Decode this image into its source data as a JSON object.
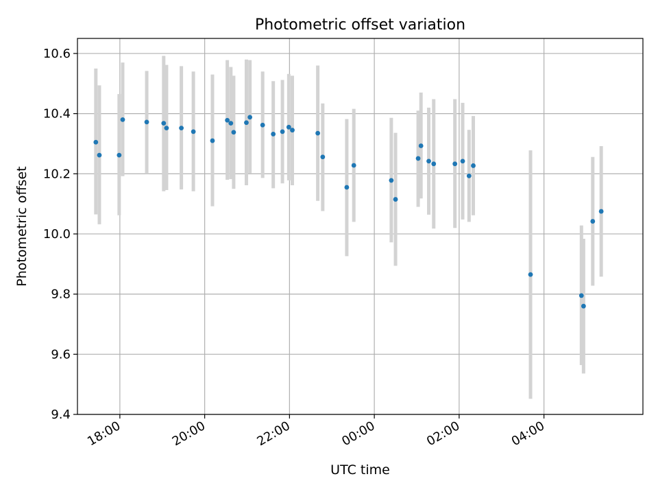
{
  "chart_data": {
    "type": "scatter",
    "title": "Photometric offset variation",
    "xlabel": "UTC time",
    "ylabel": "Photometric offset",
    "x_axis_kind": "time",
    "xlim": [
      "17:00",
      "06:20"
    ],
    "ylim": [
      9.4,
      10.65
    ],
    "grid": true,
    "x_ticks": [
      "18:00",
      "20:00",
      "22:00",
      "00:00",
      "02:00",
      "04:00"
    ],
    "y_ticks": [
      "9.4",
      "9.6",
      "9.8",
      "10.0",
      "10.2",
      "10.4",
      "10.6"
    ],
    "colors": {
      "point": "#1f77b4",
      "errorbar": "#d3d3d3",
      "grid": "#b0b0b0"
    },
    "points": [
      {
        "x": "17:26",
        "y": 10.305,
        "lo": 10.065,
        "hi": 10.55
      },
      {
        "x": "17:31",
        "y": 10.262,
        "lo": 10.032,
        "hi": 10.494
      },
      {
        "x": "17:59",
        "y": 10.262,
        "lo": 10.062,
        "hi": 10.465
      },
      {
        "x": "18:04",
        "y": 10.38,
        "lo": 10.192,
        "hi": 10.57
      },
      {
        "x": "18:38",
        "y": 10.372,
        "lo": 10.2,
        "hi": 10.542
      },
      {
        "x": "19:02",
        "y": 10.368,
        "lo": 10.142,
        "hi": 10.592
      },
      {
        "x": "19:06",
        "y": 10.352,
        "lo": 10.146,
        "hi": 10.562
      },
      {
        "x": "19:27",
        "y": 10.352,
        "lo": 10.148,
        "hi": 10.558
      },
      {
        "x": "19:44",
        "y": 10.34,
        "lo": 10.142,
        "hi": 10.54
      },
      {
        "x": "20:11",
        "y": 10.31,
        "lo": 10.092,
        "hi": 10.53
      },
      {
        "x": "20:32",
        "y": 10.378,
        "lo": 10.18,
        "hi": 10.578
      },
      {
        "x": "20:37",
        "y": 10.368,
        "lo": 10.182,
        "hi": 10.555
      },
      {
        "x": "20:41",
        "y": 10.338,
        "lo": 10.15,
        "hi": 10.526
      },
      {
        "x": "20:59",
        "y": 10.37,
        "lo": 10.162,
        "hi": 10.58
      },
      {
        "x": "21:04",
        "y": 10.388,
        "lo": 10.202,
        "hi": 10.578
      },
      {
        "x": "21:22",
        "y": 10.362,
        "lo": 10.186,
        "hi": 10.54
      },
      {
        "x": "21:37",
        "y": 10.332,
        "lo": 10.152,
        "hi": 10.508
      },
      {
        "x": "21:50",
        "y": 10.34,
        "lo": 10.168,
        "hi": 10.512
      },
      {
        "x": "21:59",
        "y": 10.355,
        "lo": 10.178,
        "hi": 10.532
      },
      {
        "x": "22:04",
        "y": 10.345,
        "lo": 10.162,
        "hi": 10.526
      },
      {
        "x": "22:40",
        "y": 10.335,
        "lo": 10.11,
        "hi": 10.56
      },
      {
        "x": "22:47",
        "y": 10.256,
        "lo": 10.076,
        "hi": 10.434
      },
      {
        "x": "23:21",
        "y": 10.155,
        "lo": 9.926,
        "hi": 10.382
      },
      {
        "x": "23:31",
        "y": 10.228,
        "lo": 10.04,
        "hi": 10.416
      },
      {
        "x": "00:24",
        "y": 10.178,
        "lo": 9.972,
        "hi": 10.386
      },
      {
        "x": "00:30",
        "y": 10.115,
        "lo": 9.894,
        "hi": 10.336
      },
      {
        "x": "01:02",
        "y": 10.251,
        "lo": 10.09,
        "hi": 10.41
      },
      {
        "x": "01:06",
        "y": 10.293,
        "lo": 10.118,
        "hi": 10.47
      },
      {
        "x": "01:17",
        "y": 10.242,
        "lo": 10.064,
        "hi": 10.42
      },
      {
        "x": "01:24",
        "y": 10.233,
        "lo": 10.018,
        "hi": 10.448
      },
      {
        "x": "01:54",
        "y": 10.233,
        "lo": 10.02,
        "hi": 10.448
      },
      {
        "x": "02:05",
        "y": 10.242,
        "lo": 10.048,
        "hi": 10.436
      },
      {
        "x": "02:14",
        "y": 10.193,
        "lo": 10.04,
        "hi": 10.346
      },
      {
        "x": "02:20",
        "y": 10.227,
        "lo": 10.062,
        "hi": 10.392
      },
      {
        "x": "03:41",
        "y": 9.865,
        "lo": 9.452,
        "hi": 10.278
      },
      {
        "x": "04:53",
        "y": 9.795,
        "lo": 9.564,
        "hi": 10.028
      },
      {
        "x": "04:56",
        "y": 9.76,
        "lo": 9.536,
        "hi": 9.984
      },
      {
        "x": "05:09",
        "y": 10.042,
        "lo": 9.828,
        "hi": 10.256
      },
      {
        "x": "05:21",
        "y": 10.075,
        "lo": 9.858,
        "hi": 10.292
      }
    ]
  }
}
